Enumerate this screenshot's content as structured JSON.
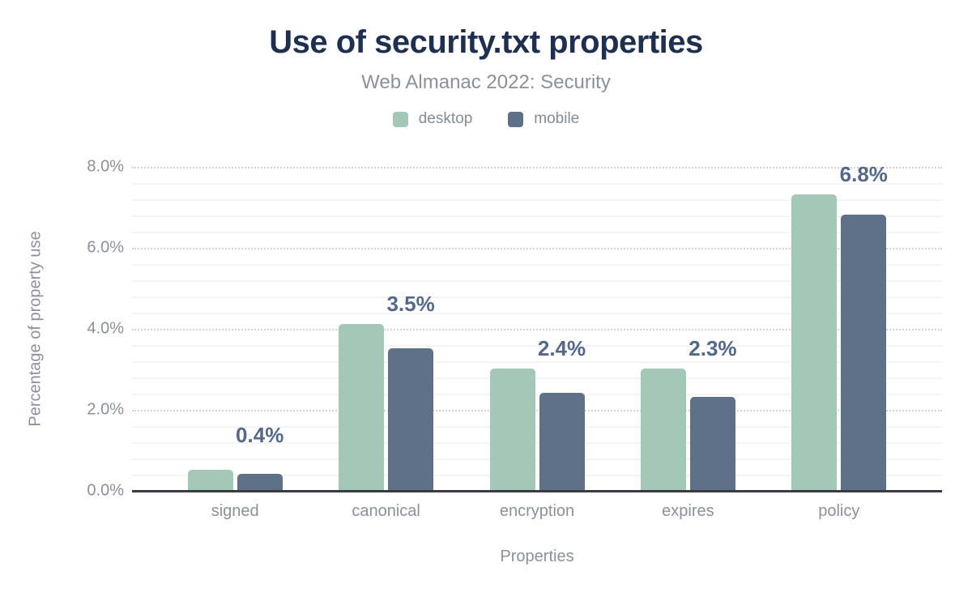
{
  "chart_data": {
    "type": "bar",
    "title": "Use of security.txt properties",
    "subtitle": "Web Almanac 2022: Security",
    "categories": [
      "signed",
      "canonical",
      "encryption",
      "expires",
      "policy"
    ],
    "series": [
      {
        "name": "desktop",
        "color": "#a4c8b7",
        "values": [
          0.5,
          4.1,
          3.0,
          3.0,
          7.3
        ]
      },
      {
        "name": "mobile",
        "color": "#5f7189",
        "values": [
          0.4,
          3.5,
          2.4,
          2.3,
          6.8
        ]
      }
    ],
    "data_labels": [
      "0.4%",
      "3.5%",
      "2.4%",
      "2.3%",
      "6.8%"
    ],
    "data_labels_series": "mobile",
    "xlabel": "Properties",
    "ylabel": "Percentage of property use",
    "ylim": [
      0,
      8
    ],
    "yticks": [
      {
        "value": 0,
        "label": "0.0%"
      },
      {
        "value": 2,
        "label": "2.0%"
      },
      {
        "value": 4,
        "label": "4.0%"
      },
      {
        "value": 6,
        "label": "6.0%"
      },
      {
        "value": 8,
        "label": "8.0%"
      }
    ],
    "grid": {
      "major_interval_pct": 2,
      "major_style": "dotted",
      "minor_interval_pct": 0.4,
      "minor_style": "solid"
    },
    "legend_position": "top"
  },
  "colors": {
    "title": "#1e2f52",
    "muted_text": "#8b909a",
    "legend_text": "#858a94",
    "data_label": "#54688c",
    "axis_line": "#3a3a41",
    "grid_minor": "#f4f4f6",
    "grid_major": "#d2d3d8",
    "background": "#ffffff"
  }
}
